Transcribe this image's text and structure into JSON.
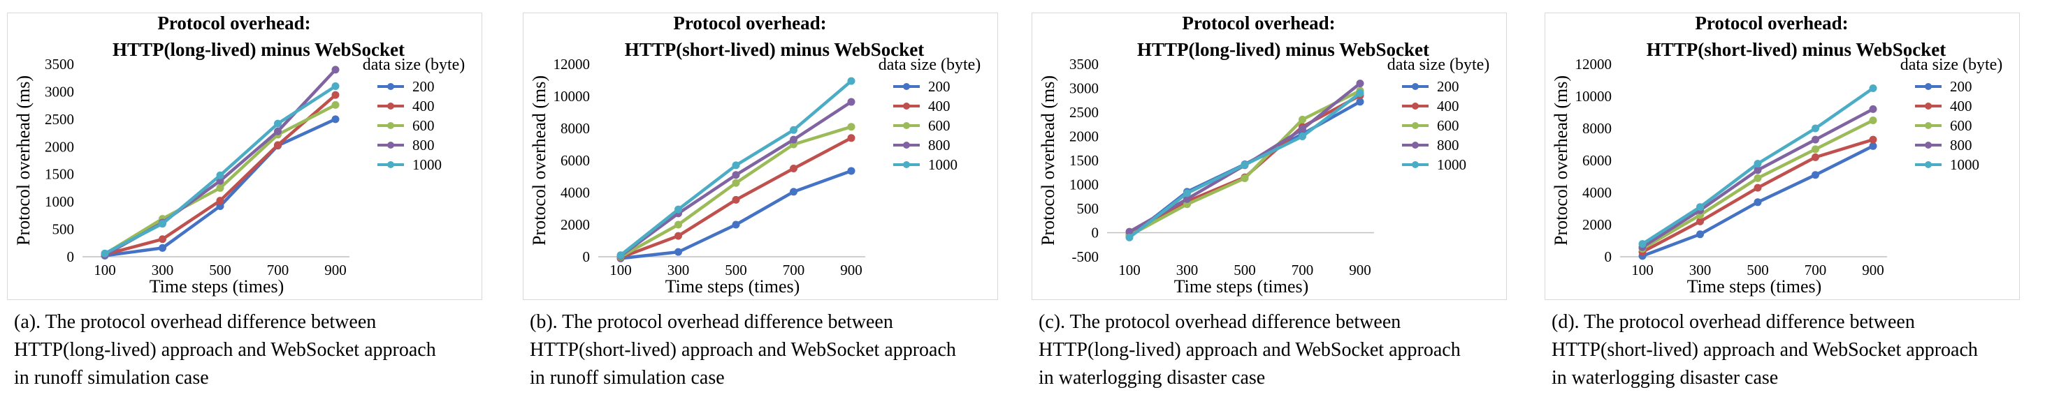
{
  "colors": {
    "s200": "#4472c4",
    "s400": "#c0504d",
    "s600": "#9bbb59",
    "s800": "#8064a2",
    "s1000": "#4bacc6",
    "frame": "#d9d9d9",
    "axis": "#bfbfbf"
  },
  "chart_data": [
    {
      "type": "line",
      "title_line1": "Protocol overhead:",
      "title_line2": "HTTP(long-lived) minus WebSocket",
      "xlabel": "Time steps (times)",
      "ylabel": "Protocol overhead (ms)",
      "legend_title": "data size (byte)",
      "legend_position": "right",
      "x": [
        "100",
        "300",
        "500",
        "700",
        "900"
      ],
      "ylim": [
        0,
        3500
      ],
      "yticks": [
        "0",
        "500",
        "1000",
        "1500",
        "2000",
        "2500",
        "3000",
        "3500"
      ],
      "series": [
        {
          "name": "200",
          "values": [
            20,
            160,
            920,
            2020,
            2500
          ]
        },
        {
          "name": "400",
          "values": [
            40,
            320,
            1020,
            2030,
            2940
          ]
        },
        {
          "name": "600",
          "values": [
            50,
            690,
            1250,
            2220,
            2760
          ]
        },
        {
          "name": "800",
          "values": [
            30,
            620,
            1380,
            2280,
            3400
          ]
        },
        {
          "name": "1000",
          "values": [
            60,
            600,
            1480,
            2420,
            3100
          ]
        }
      ],
      "caption": [
        "(a). The protocol overhead difference between",
        "HTTP(long-lived) approach and WebSocket approach",
        "in runoff simulation case"
      ]
    },
    {
      "type": "line",
      "title_line1": "Protocol overhead:",
      "title_line2": "HTTP(short-lived) minus WebSocket",
      "xlabel": "Time steps (times)",
      "ylabel": "Protocol overhead (ms)",
      "legend_title": "data size (byte)",
      "legend_position": "right",
      "x": [
        "100",
        "300",
        "500",
        "700",
        "900"
      ],
      "ylim": [
        0,
        12000
      ],
      "yticks": [
        "0",
        "2000",
        "4000",
        "6000",
        "8000",
        "10000",
        "12000"
      ],
      "series": [
        {
          "name": "200",
          "values": [
            -100,
            300,
            2000,
            4050,
            5350
          ]
        },
        {
          "name": "400",
          "values": [
            -50,
            1300,
            3550,
            5500,
            7400
          ]
        },
        {
          "name": "600",
          "values": [
            0,
            2000,
            4600,
            7000,
            8100
          ]
        },
        {
          "name": "800",
          "values": [
            50,
            2700,
            5100,
            7300,
            9650
          ]
        },
        {
          "name": "1000",
          "values": [
            100,
            2950,
            5700,
            7900,
            10950
          ]
        }
      ],
      "caption": [
        "(b). The protocol overhead difference between",
        "HTTP(short-lived) approach and WebSocket approach",
        "in runoff simulation case"
      ]
    },
    {
      "type": "line",
      "title_line1": "Protocol overhead:",
      "title_line2": "HTTP(long-lived) minus WebSocket",
      "xlabel": "Time steps (times)",
      "ylabel": "Protocol overhead (ms)",
      "legend_title": "data size (byte)",
      "legend_position": "right",
      "x": [
        "100",
        "300",
        "500",
        "700",
        "900"
      ],
      "ylim": [
        -500,
        3500
      ],
      "yticks": [
        "-500",
        "0",
        "500",
        "1000",
        "1500",
        "2000",
        "2500",
        "3000",
        "3500"
      ],
      "series": [
        {
          "name": "200",
          "values": [
            -80,
            850,
            1420,
            2050,
            2720
          ]
        },
        {
          "name": "400",
          "values": [
            -40,
            650,
            1150,
            2200,
            2850
          ]
        },
        {
          "name": "600",
          "values": [
            -60,
            590,
            1130,
            2350,
            2950
          ]
        },
        {
          "name": "800",
          "values": [
            20,
            700,
            1400,
            2150,
            3100
          ]
        },
        {
          "name": "1000",
          "values": [
            -100,
            820,
            1410,
            2000,
            2900
          ]
        }
      ],
      "caption": [
        "(c). The protocol overhead difference between",
        "HTTP(long-lived) approach and WebSocket approach",
        "in waterlogging disaster case"
      ]
    },
    {
      "type": "line",
      "title_line1": "Protocol overhead:",
      "title_line2": "HTTP(short-lived) minus WebSocket",
      "xlabel": "Time steps (times)",
      "ylabel": "Protocol overhead (ms)",
      "legend_title": "data size (byte)",
      "legend_position": "right",
      "x": [
        "100",
        "300",
        "500",
        "700",
        "900"
      ],
      "ylim": [
        0,
        12000
      ],
      "yticks": [
        "0",
        "2000",
        "4000",
        "6000",
        "8000",
        "10000",
        "12000"
      ],
      "series": [
        {
          "name": "200",
          "values": [
            50,
            1400,
            3400,
            5100,
            6900
          ]
        },
        {
          "name": "400",
          "values": [
            300,
            2200,
            4300,
            6200,
            7300
          ]
        },
        {
          "name": "600",
          "values": [
            500,
            2600,
            4900,
            6700,
            8500
          ]
        },
        {
          "name": "800",
          "values": [
            600,
            2900,
            5400,
            7300,
            9200
          ]
        },
        {
          "name": "1000",
          "values": [
            800,
            3100,
            5800,
            8000,
            10500
          ]
        }
      ],
      "caption": [
        "(d). The protocol overhead difference between",
        "HTTP(short-lived) approach and WebSocket approach",
        "in waterlogging disaster case"
      ]
    }
  ]
}
